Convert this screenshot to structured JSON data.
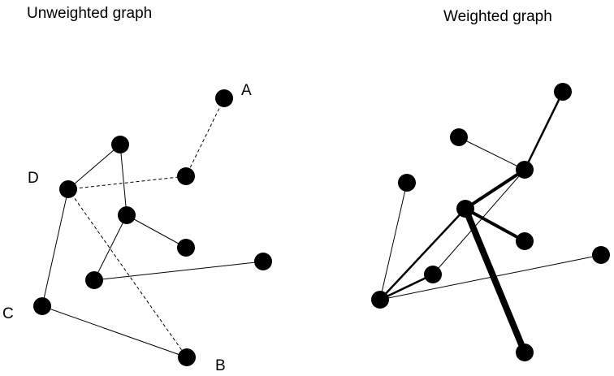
{
  "unweighted": {
    "title": "Unweighted graph",
    "nodes": [
      {
        "id": "A",
        "label": "A"
      },
      {
        "id": "n2",
        "label": ""
      },
      {
        "id": "n3",
        "label": ""
      },
      {
        "id": "D",
        "label": "D"
      },
      {
        "id": "n5",
        "label": ""
      },
      {
        "id": "n6",
        "label": ""
      },
      {
        "id": "n7",
        "label": ""
      },
      {
        "id": "n8",
        "label": ""
      },
      {
        "id": "C",
        "label": "C"
      },
      {
        "id": "B",
        "label": "B"
      }
    ],
    "edges": [
      {
        "from": "n2",
        "to": "D",
        "style": "solid"
      },
      {
        "from": "n2",
        "to": "n5",
        "style": "solid"
      },
      {
        "from": "D",
        "to": "C",
        "style": "solid"
      },
      {
        "from": "n5",
        "to": "n6",
        "style": "solid"
      },
      {
        "from": "n5",
        "to": "n8",
        "style": "solid"
      },
      {
        "from": "n8",
        "to": "n7",
        "style": "solid"
      },
      {
        "from": "C",
        "to": "B",
        "style": "solid"
      },
      {
        "from": "A",
        "to": "n3",
        "style": "dashed"
      },
      {
        "from": "D",
        "to": "n3",
        "style": "dashed"
      },
      {
        "from": "D",
        "to": "B",
        "style": "dashed"
      }
    ]
  },
  "weighted": {
    "title": "Weighted graph",
    "nodes": [
      {
        "id": "w1",
        "label": ""
      },
      {
        "id": "w2",
        "label": ""
      },
      {
        "id": "w3",
        "label": ""
      },
      {
        "id": "w4",
        "label": ""
      },
      {
        "id": "w5",
        "label": ""
      },
      {
        "id": "w6",
        "label": ""
      },
      {
        "id": "w7",
        "label": ""
      },
      {
        "id": "w8",
        "label": ""
      },
      {
        "id": "w9",
        "label": ""
      },
      {
        "id": "w10",
        "label": ""
      }
    ],
    "edges": [
      {
        "from": "w1",
        "to": "w3",
        "weight": 2
      },
      {
        "from": "w2",
        "to": "w3",
        "weight": 1
      },
      {
        "from": "w3",
        "to": "w5",
        "weight": 3
      },
      {
        "from": "w3",
        "to": "w8",
        "weight": 1
      },
      {
        "from": "w4",
        "to": "w9",
        "weight": 1
      },
      {
        "from": "w5",
        "to": "w9",
        "weight": 2
      },
      {
        "from": "w5",
        "to": "w6",
        "weight": 3
      },
      {
        "from": "w5",
        "to": "w10",
        "weight": 5
      },
      {
        "from": "w9",
        "to": "w8",
        "weight": 2
      },
      {
        "from": "w9",
        "to": "w7",
        "weight": 1
      }
    ]
  },
  "colors": {
    "node": "#000000",
    "edge": "#000000",
    "background": "#ffffff"
  }
}
